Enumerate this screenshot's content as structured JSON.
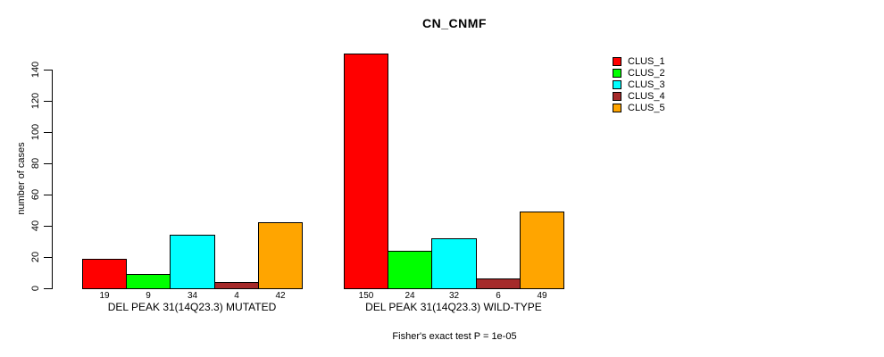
{
  "chart_data": {
    "type": "bar",
    "title": "CN_CNMF",
    "ylabel": "number of cases",
    "ylim": [
      0,
      150
    ],
    "yticks": [
      0,
      20,
      40,
      60,
      80,
      100,
      120,
      140
    ],
    "grid": false,
    "legend_position": "right",
    "categories": [
      "DEL PEAK 31(14Q23.3) MUTATED",
      "DEL PEAK 31(14Q23.3) WILD-TYPE"
    ],
    "series": [
      {
        "name": "CLUS_1",
        "color": "#ff0000",
        "values": [
          19,
          150
        ]
      },
      {
        "name": "CLUS_2",
        "color": "#00ff00",
        "values": [
          9,
          24
        ]
      },
      {
        "name": "CLUS_3",
        "color": "#00ffff",
        "values": [
          34,
          32
        ]
      },
      {
        "name": "CLUS_4",
        "color": "#a52a2a",
        "values": [
          4,
          6
        ]
      },
      {
        "name": "CLUS_5",
        "color": "#ffa500",
        "values": [
          42,
          49
        ]
      }
    ],
    "bar_value_labels_shown": true,
    "annotation": "Fisher's exact test P = 1e-05",
    "text_color": "#000000",
    "background_color": "#ffffff"
  }
}
